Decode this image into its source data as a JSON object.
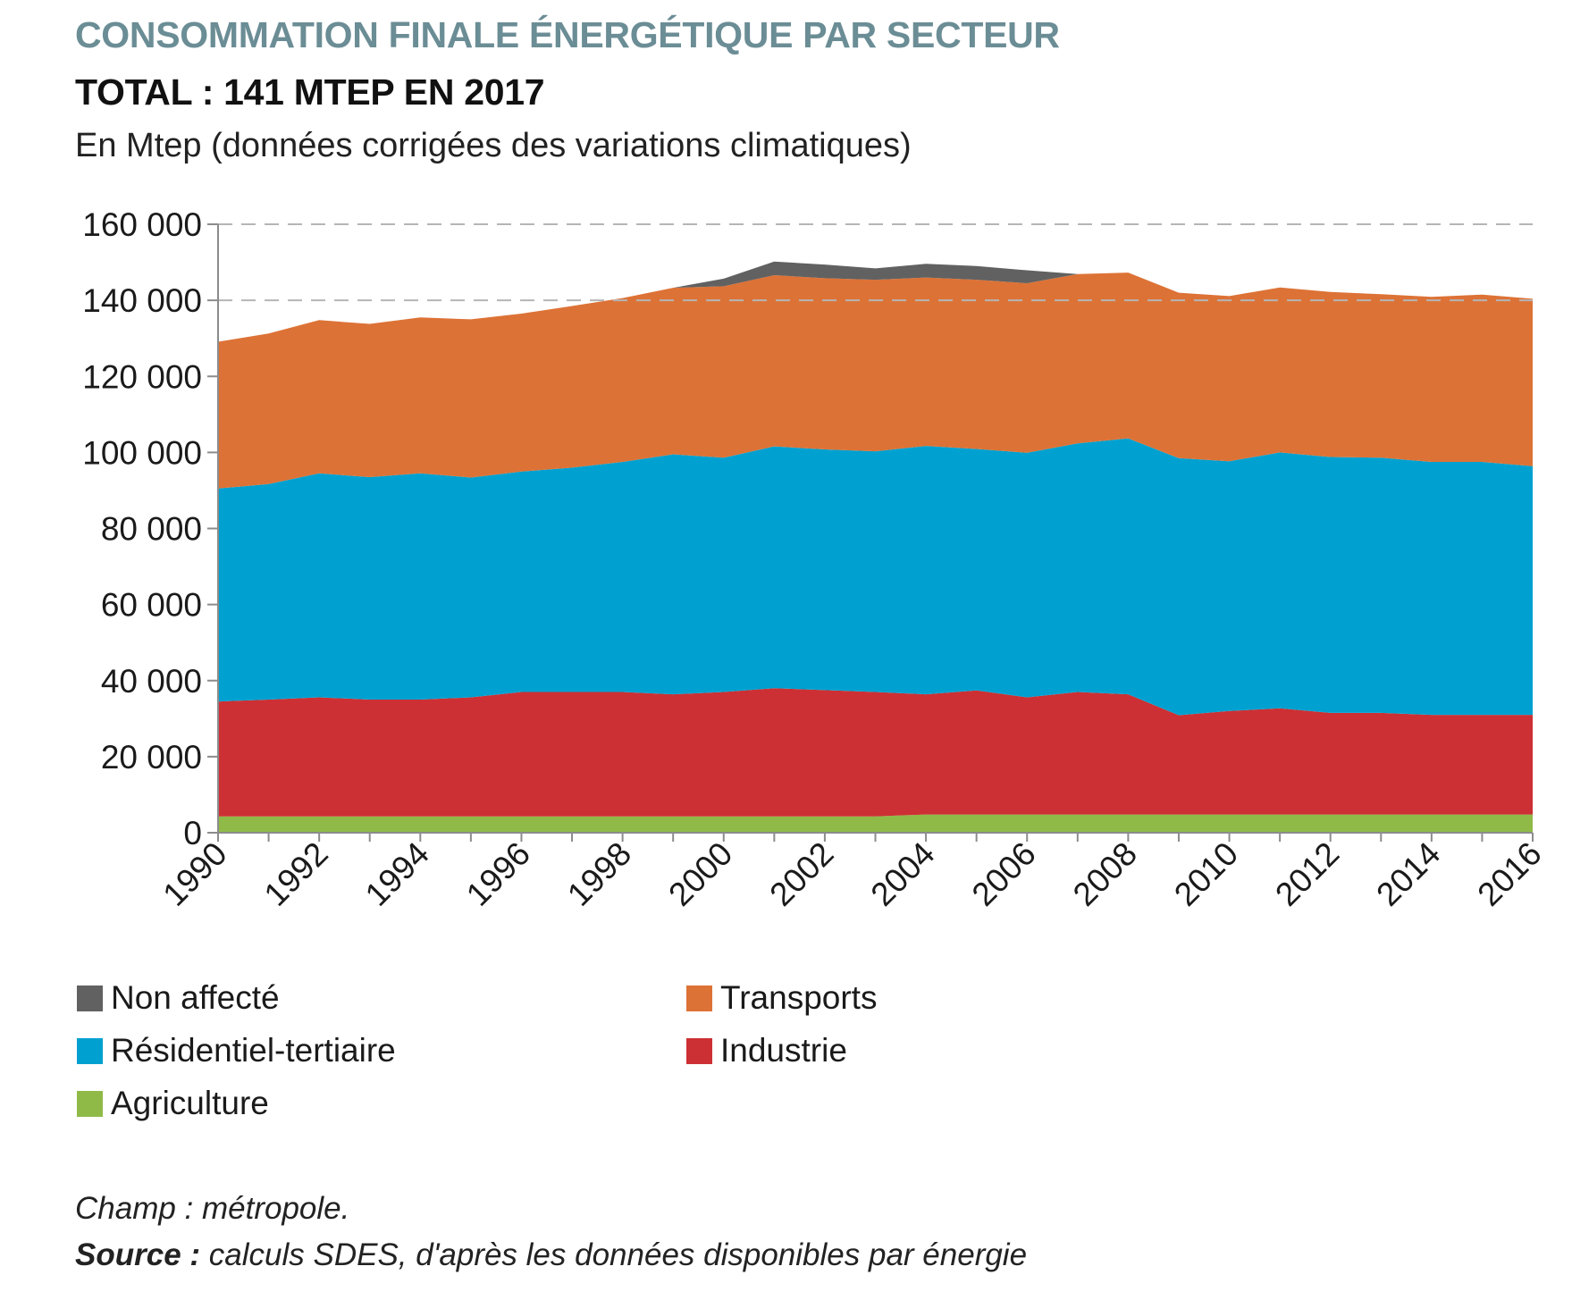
{
  "chart_data": {
    "type": "area",
    "stacked": true,
    "title": "CONSOMMATION FINALE ÉNERGÉTIQUE PAR SECTEUR",
    "subtitle": "TOTAL : 141 MTEP EN 2017",
    "units_label": "En Mtep (données corrigées des variations climatiques)",
    "xlabel": "",
    "ylabel": "",
    "ylim": [
      0,
      160000
    ],
    "yticks": [
      0,
      20000,
      40000,
      60000,
      80000,
      100000,
      120000,
      140000,
      160000
    ],
    "ytick_labels": [
      "0",
      "20 000",
      "40 000",
      "60 000",
      "80 000",
      "100 000",
      "120 000",
      "140 000",
      "160 000"
    ],
    "gridlines_dashed_at": [
      140000,
      160000
    ],
    "x": [
      1990,
      1991,
      1992,
      1993,
      1994,
      1995,
      1996,
      1997,
      1998,
      1999,
      2000,
      2001,
      2002,
      2003,
      2004,
      2005,
      2006,
      2007,
      2008,
      2009,
      2010,
      2011,
      2012,
      2013,
      2014,
      2015,
      2016
    ],
    "xtick_labels": [
      "1990",
      "1992",
      "1994",
      "1996",
      "1998",
      "2000",
      "2002",
      "2004",
      "2006",
      "2008",
      "2010",
      "2012",
      "2014",
      "2016"
    ],
    "series": [
      {
        "name": "Agriculture",
        "color": "#8fba48",
        "values": [
          4300,
          4300,
          4300,
          4300,
          4300,
          4300,
          4300,
          4300,
          4300,
          4300,
          4300,
          4300,
          4300,
          4300,
          4800,
          4800,
          4800,
          4800,
          4800,
          4800,
          4800,
          4800,
          4800,
          4800,
          4800,
          4800,
          4800
        ]
      },
      {
        "name": "Industrie",
        "color": "#cc3034",
        "values": [
          30200,
          30700,
          31300,
          30700,
          30700,
          31300,
          32700,
          32700,
          32700,
          32100,
          32700,
          33700,
          33200,
          32700,
          31600,
          32600,
          30800,
          32200,
          31600,
          26100,
          27200,
          27900,
          26700,
          26700,
          26200,
          26200,
          26200
        ]
      },
      {
        "name": "Résidentiel-tertiaire",
        "color": "#00a1d0",
        "values": [
          56000,
          56700,
          58900,
          58500,
          59500,
          57800,
          58000,
          59000,
          60500,
          63100,
          61600,
          63600,
          63300,
          63300,
          65300,
          63500,
          64300,
          65400,
          67300,
          67600,
          65700,
          67300,
          67300,
          67100,
          66500,
          66500,
          65400
        ]
      },
      {
        "name": "Transports",
        "color": "#dd7236",
        "values": [
          38600,
          39600,
          40300,
          40300,
          41000,
          41600,
          41500,
          42500,
          43100,
          43800,
          45100,
          45000,
          45000,
          45100,
          44300,
          44500,
          44600,
          44500,
          43600,
          43500,
          43400,
          43400,
          43400,
          43000,
          43400,
          44000,
          44000
        ]
      },
      {
        "name": "Non affecté",
        "color": "#616161",
        "values": [
          0,
          0,
          0,
          0,
          0,
          0,
          0,
          0,
          0,
          0,
          2000,
          3600,
          3600,
          3000,
          3600,
          3600,
          3400,
          0,
          0,
          0,
          0,
          0,
          0,
          0,
          0,
          0,
          0
        ]
      }
    ],
    "legend": [
      {
        "name": "Non affecté",
        "color": "#616161"
      },
      {
        "name": "Transports",
        "color": "#dd7236"
      },
      {
        "name": "Résidentiel-tertiaire",
        "color": "#00a1d0"
      },
      {
        "name": "Industrie",
        "color": "#cc3034"
      },
      {
        "name": "Agriculture",
        "color": "#8fba48"
      }
    ]
  },
  "notes": {
    "champ": "Champ : métropole.",
    "source_label": "Source :",
    "source_text": " calculs SDES, d'après les données disponibles par énergie"
  }
}
